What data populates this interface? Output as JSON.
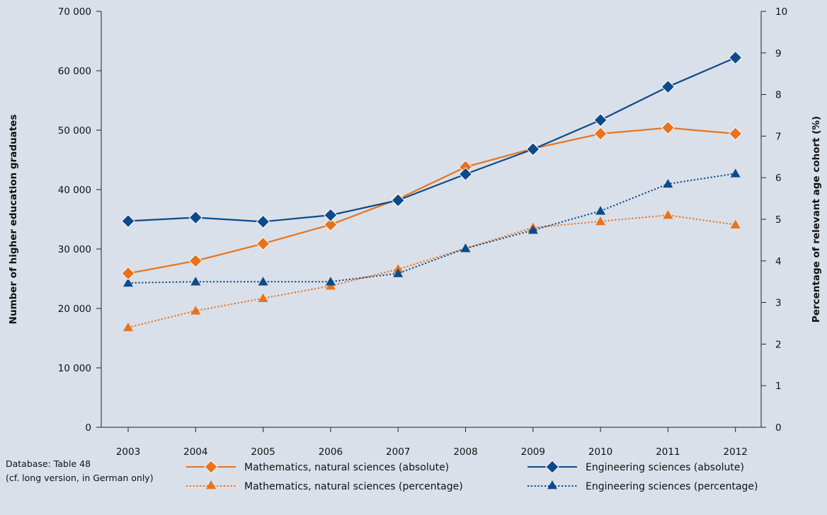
{
  "footnote": {
    "line1": "Database: Table 48",
    "line2": "(cf. long version, in German only)"
  },
  "chart_data": {
    "type": "line",
    "categories": [
      "2003",
      "2004",
      "2005",
      "2006",
      "2007",
      "2008",
      "2009",
      "2010",
      "2011",
      "2012"
    ],
    "y_left": {
      "label": "Number of higher education graduates",
      "range": [
        0,
        70000
      ],
      "ticks": [
        0,
        10000,
        20000,
        30000,
        40000,
        50000,
        60000,
        70000
      ],
      "tick_labels": [
        "0",
        "10 000",
        "20 000",
        "30 000",
        "40 000",
        "50 000",
        "60 000",
        "70 000"
      ]
    },
    "y_right": {
      "label": "Percentage of relevant age cohort (%)",
      "range": [
        0,
        10
      ],
      "ticks": [
        0,
        1,
        2,
        3,
        4,
        5,
        6,
        7,
        8,
        9,
        10
      ],
      "tick_labels": [
        "0",
        "1",
        "2",
        "3",
        "4",
        "5",
        "6",
        "7",
        "8",
        "9",
        "10"
      ]
    },
    "grid": false,
    "legend_position": "bottom",
    "series": [
      {
        "name": "Mathematics, natural sciences (absolute)",
        "axis": "left",
        "color": "#e8731c",
        "marker": "diamond",
        "dashed": false,
        "values": [
          25900,
          28000,
          30900,
          34100,
          38400,
          43800,
          46900,
          49400,
          50400,
          49400
        ]
      },
      {
        "name": "Engineering sciences (absolute)",
        "axis": "left",
        "color": "#0d4a8a",
        "marker": "diamond",
        "dashed": false,
        "values": [
          34700,
          35300,
          34600,
          35700,
          38200,
          42600,
          46800,
          51700,
          57300,
          62200
        ]
      },
      {
        "name": "Mathematics, natural sciences (percentage)",
        "axis": "right",
        "color": "#e8731c",
        "marker": "triangle",
        "dashed": true,
        "values": [
          2.4,
          2.8,
          3.1,
          3.4,
          3.8,
          4.3,
          4.8,
          4.95,
          5.1,
          4.87
        ]
      },
      {
        "name": "Engineering sciences (percentage)",
        "axis": "right",
        "color": "#0d4a8a",
        "marker": "triangle",
        "dashed": true,
        "values": [
          3.47,
          3.5,
          3.5,
          3.5,
          3.7,
          4.3,
          4.74,
          5.2,
          5.85,
          6.1
        ]
      }
    ]
  }
}
